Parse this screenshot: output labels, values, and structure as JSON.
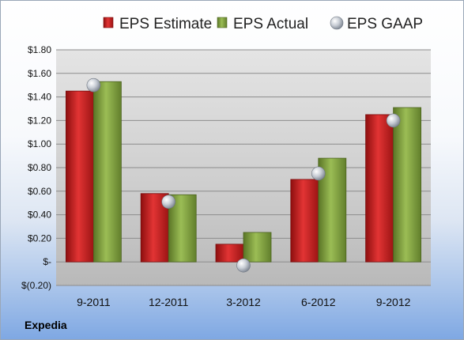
{
  "company": "Expedia",
  "chart_data": {
    "type": "bar",
    "title": "",
    "xlabel": "",
    "ylabel": "",
    "categories": [
      "9-2011",
      "12-2011",
      "3-2012",
      "6-2012",
      "9-2012"
    ],
    "series": [
      {
        "name": "EPS Estimate",
        "kind": "bar",
        "color": "#cc1f1f",
        "values": [
          1.45,
          0.58,
          0.15,
          0.7,
          1.25
        ]
      },
      {
        "name": "EPS Actual",
        "kind": "bar",
        "color": "#7a9a3a",
        "values": [
          1.53,
          0.57,
          0.25,
          0.88,
          1.31
        ]
      },
      {
        "name": "EPS GAAP",
        "kind": "marker",
        "color": "#b8bec8",
        "values": [
          1.5,
          0.51,
          -0.03,
          0.75,
          1.2
        ]
      }
    ],
    "ylim": [
      -0.2,
      1.8
    ],
    "yticks": [
      1.8,
      1.6,
      1.4,
      1.2,
      1.0,
      0.8,
      0.6,
      0.4,
      0.2,
      0,
      -0.2
    ],
    "ytick_labels": [
      "$1.80",
      "$1.60",
      "$1.40",
      "$1.20",
      "$1.00",
      "$0.80",
      "$0.60",
      "$0.40",
      "$0.20",
      "$-",
      "$(0.20)"
    ],
    "grid": true,
    "legend": "top"
  }
}
